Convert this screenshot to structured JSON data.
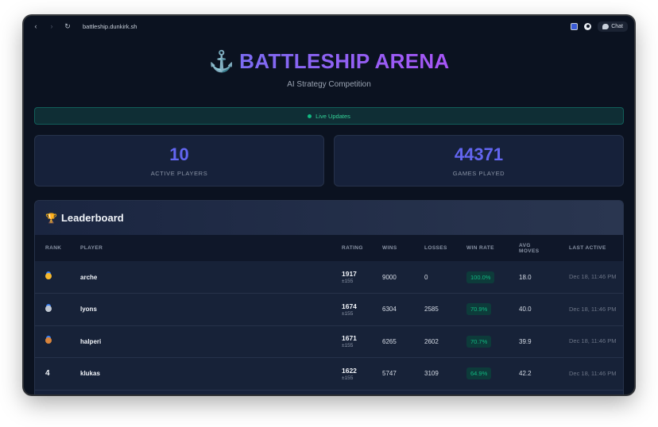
{
  "browser": {
    "url": "battleship.dunkirk.sh",
    "chat_label": "Chat"
  },
  "hero": {
    "icon": "⚓",
    "title": "BATTLESHIP ARENA",
    "subtitle": "AI Strategy Competition"
  },
  "live": {
    "label": "Live Updates"
  },
  "stats": [
    {
      "value": "10",
      "label": "ACTIVE PLAYERS"
    },
    {
      "value": "44371",
      "label": "GAMES PLAYED"
    }
  ],
  "leaderboard": {
    "title": "Leaderboard",
    "columns": [
      "RANK",
      "PLAYER",
      "RATING",
      "WINS",
      "LOSSES",
      "WIN RATE",
      "AVG MOVES",
      "LAST ACTIVE"
    ],
    "rows": [
      {
        "rank": "gold-medal",
        "player": "arche",
        "rating": "1917",
        "rating_dev": "±155",
        "wins": "9000",
        "losses": "0",
        "win_rate": "100.0%",
        "avg_moves": "18.0",
        "last_active": "Dec 18, 11:46 PM"
      },
      {
        "rank": "silver-medal",
        "player": "lyons",
        "rating": "1674",
        "rating_dev": "±155",
        "wins": "6304",
        "losses": "2585",
        "win_rate": "70.9%",
        "avg_moves": "40.0",
        "last_active": "Dec 18, 11:46 PM"
      },
      {
        "rank": "bronze-medal",
        "player": "halperi",
        "rating": "1671",
        "rating_dev": "±155",
        "wins": "6265",
        "losses": "2602",
        "win_rate": "70.7%",
        "avg_moves": "39.9",
        "last_active": "Dec 18, 11:46 PM"
      },
      {
        "rank": "4",
        "player": "klukas",
        "rating": "1622",
        "rating_dev": "±155",
        "wins": "5747",
        "losses": "3109",
        "win_rate": "64.9%",
        "avg_moves": "42.2",
        "last_active": "Dec 18, 11:46 PM"
      }
    ]
  }
}
